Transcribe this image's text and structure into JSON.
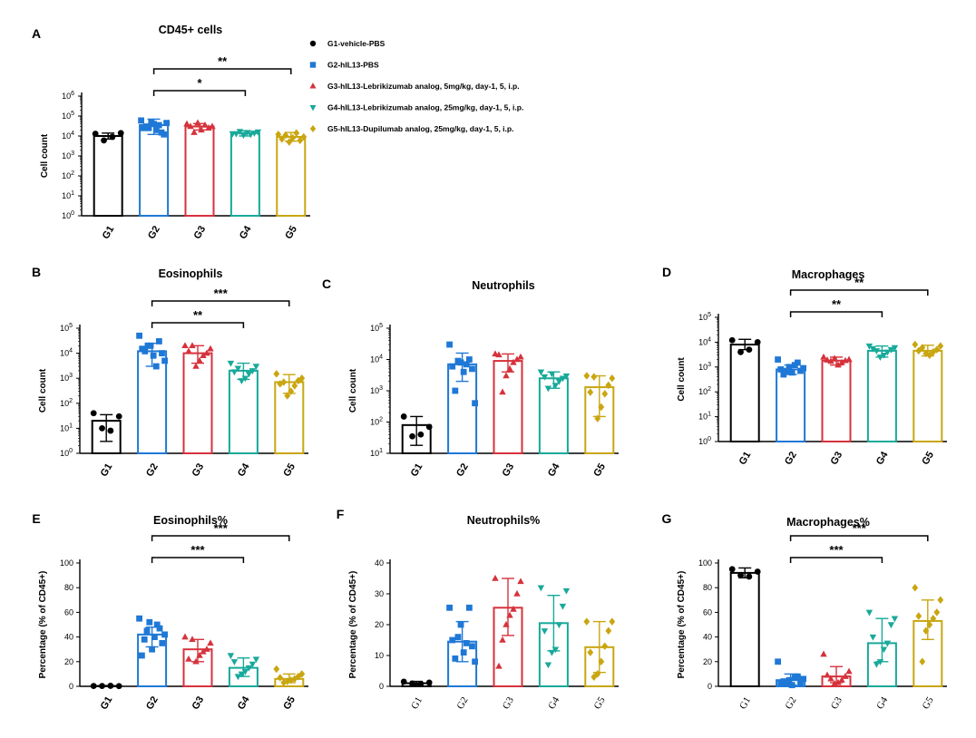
{
  "groups": [
    "G1",
    "G2",
    "G3",
    "G4",
    "G5"
  ],
  "colors": [
    "#000000",
    "#1f78d6",
    "#d6323c",
    "#18a99a",
    "#c9a611"
  ],
  "markers": [
    "circle",
    "square",
    "triangle-up",
    "triangle-down",
    "diamond"
  ],
  "legend": [
    "G1-vehicle-PBS",
    "G2-hIL13-PBS",
    "G3-hIL13-Lebrikizumab analog, 5mg/kg, day-1, 5, i.p.",
    "G4-hIL13-Lebrikizumab analog, 25mg/kg, day-1, 5, i.p.",
    "G5-hIL13-Dupilumab analog, 25mg/kg, day-1, 5, i.p."
  ],
  "chart_data": [
    {
      "panel": "A",
      "title": "CD45+ cells",
      "type": "bar",
      "scale": "log",
      "ylabel": "Cell count",
      "ylim": [
        1,
        1000000
      ],
      "ytick_labels": [
        [
          "10",
          "0"
        ],
        [
          "10",
          "1"
        ],
        [
          "10",
          "2"
        ],
        [
          "10",
          "3"
        ],
        [
          "10",
          "4"
        ],
        [
          "10",
          "5"
        ],
        [
          "10",
          "6"
        ]
      ],
      "categories": [
        "G1",
        "G2",
        "G3",
        "G4",
        "G5"
      ],
      "means": [
        10000,
        35000,
        30000,
        14000,
        9000
      ],
      "sd": [
        [
          7000,
          14000
        ],
        [
          12000,
          70000
        ],
        [
          20000,
          42000
        ],
        [
          10000,
          18000
        ],
        [
          5500,
          15000
        ]
      ],
      "points": [
        [
          13000,
          14000,
          9000,
          6000
        ],
        [
          60000,
          35000,
          25000,
          45000,
          20000,
          30000,
          12000,
          40000,
          25000,
          15000,
          50000
        ],
        [
          40000,
          30000,
          25000,
          35000,
          20000,
          45000,
          15000,
          30000
        ],
        [
          13000,
          16000,
          14000,
          12000,
          15000,
          11000,
          17000,
          13000
        ],
        [
          12000,
          9000,
          6000,
          14000,
          8000,
          5000,
          11000,
          7000
        ]
      ],
      "significance": [
        {
          "from": "G2",
          "to": "G4",
          "label": "*"
        },
        {
          "from": "G2",
          "to": "G5",
          "label": "**"
        }
      ]
    },
    {
      "panel": "B",
      "title": "Eosinophils",
      "type": "bar",
      "scale": "log",
      "ylabel": "Cell count",
      "ylim": [
        1,
        100000
      ],
      "ytick_labels": [
        [
          "10",
          "0"
        ],
        [
          "10",
          "1"
        ],
        [
          "10",
          "2"
        ],
        [
          "10",
          "3"
        ],
        [
          "10",
          "4"
        ],
        [
          "10",
          "5"
        ]
      ],
      "categories": [
        "G1",
        "G2",
        "G3",
        "G4",
        "G5"
      ],
      "means": [
        20,
        12000,
        10000,
        2000,
        700
      ],
      "sd": [
        [
          3,
          35
        ],
        [
          3000,
          25000
        ],
        [
          4000,
          20000
        ],
        [
          900,
          4000
        ],
        [
          250,
          1400
        ]
      ],
      "points": [
        [
          40,
          30,
          8,
          10
        ],
        [
          50000,
          30000,
          20000,
          15000,
          10000,
          8000,
          12000,
          5000,
          3000,
          20000
        ],
        [
          20000,
          15000,
          10000,
          8000,
          5000,
          3000,
          20000,
          12000
        ],
        [
          4000,
          3000,
          2000,
          1500,
          1000,
          800,
          2500,
          1800
        ],
        [
          1500,
          1000,
          800,
          500,
          300,
          200,
          700,
          600
        ]
      ],
      "significance": [
        {
          "from": "G2",
          "to": "G4",
          "label": "**"
        },
        {
          "from": "G2",
          "to": "G5",
          "label": "***"
        }
      ]
    },
    {
      "panel": "C",
      "title": "Neutrophils",
      "type": "bar",
      "scale": "log",
      "ylabel": "Cell count",
      "ylim": [
        10,
        100000
      ],
      "ytick_labels": [
        [
          "10",
          "1"
        ],
        [
          "10",
          "2"
        ],
        [
          "10",
          "3"
        ],
        [
          "10",
          "4"
        ],
        [
          "10",
          "5"
        ]
      ],
      "categories": [
        "G1",
        "G2",
        "G3",
        "G4",
        "G5"
      ],
      "means": [
        80,
        7000,
        9000,
        2500,
        1300
      ],
      "sd": [
        [
          18,
          150
        ],
        [
          2000,
          16000
        ],
        [
          4000,
          15000
        ],
        [
          1200,
          4000
        ],
        [
          150,
          3000
        ]
      ],
      "points": [
        [
          150,
          70,
          40,
          35
        ],
        [
          30000,
          10000,
          8000,
          6000,
          5000,
          4000,
          1000,
          400,
          7000,
          9000
        ],
        [
          15000,
          12000,
          10000,
          8000,
          5000,
          3000,
          900,
          14000
        ],
        [
          4000,
          3000,
          2500,
          2000,
          1500,
          3500,
          1200,
          2800
        ],
        [
          3000,
          2500,
          1500,
          800,
          300,
          130,
          2800,
          900
        ]
      ],
      "significance": []
    },
    {
      "panel": "D",
      "title": "Macrophages",
      "type": "bar",
      "scale": "log",
      "ylabel": "Cell count",
      "ylim": [
        1,
        100000
      ],
      "ytick_labels": [
        [
          "10",
          "0"
        ],
        [
          "10",
          "1"
        ],
        [
          "10",
          "2"
        ],
        [
          "10",
          "3"
        ],
        [
          "10",
          "4"
        ],
        [
          "10",
          "5"
        ]
      ],
      "categories": [
        "G1",
        "G2",
        "G3",
        "G4",
        "G5"
      ],
      "means": [
        8000,
        800,
        1800,
        4500,
        4500
      ],
      "sd": [
        [
          5000,
          13000
        ],
        [
          500,
          1200
        ],
        [
          1200,
          2500
        ],
        [
          2500,
          7000
        ],
        [
          2800,
          7500
        ]
      ],
      "points": [
        [
          12000,
          10000,
          5000,
          4000
        ],
        [
          2000,
          1500,
          1000,
          800,
          700,
          600,
          500,
          900,
          1200,
          700
        ],
        [
          2500,
          2000,
          1800,
          1500,
          1200,
          2200,
          1700,
          1900
        ],
        [
          7000,
          6000,
          5000,
          4000,
          3000,
          2500,
          4500,
          5500
        ],
        [
          8000,
          7000,
          5000,
          4000,
          3000,
          3500,
          6000,
          4500
        ]
      ],
      "significance": [
        {
          "from": "G2",
          "to": "G4",
          "label": "**"
        },
        {
          "from": "G2",
          "to": "G5",
          "label": "**"
        }
      ]
    },
    {
      "panel": "E",
      "title": "Eosinophils%",
      "type": "bar",
      "scale": "linear",
      "ylabel": "Percentage (% of CD45+)",
      "ylim": [
        0,
        100
      ],
      "yticks": [
        0,
        20,
        40,
        60,
        80,
        100
      ],
      "categories": [
        "G1",
        "G2",
        "G3",
        "G4",
        "G5"
      ],
      "means": [
        0.3,
        42,
        30,
        15,
        6
      ],
      "sd": [
        [
          0,
          0.6
        ],
        [
          32,
          48
        ],
        [
          20,
          38
        ],
        [
          8,
          23
        ],
        [
          3,
          10
        ]
      ],
      "points": [
        [
          0.3,
          0.2,
          0.4,
          0.3
        ],
        [
          55,
          50,
          45,
          42,
          40,
          38,
          35,
          30,
          25,
          47,
          52
        ],
        [
          40,
          35,
          30,
          28,
          25,
          20,
          38,
          22
        ],
        [
          25,
          22,
          18,
          15,
          12,
          10,
          8,
          20
        ],
        [
          14,
          10,
          8,
          6,
          5,
          4,
          3,
          7
        ]
      ],
      "significance": [
        {
          "from": "G2",
          "to": "G4",
          "label": "***"
        },
        {
          "from": "G2",
          "to": "G5",
          "label": "***"
        }
      ]
    },
    {
      "panel": "F",
      "title": "Neutrophils%",
      "type": "bar",
      "scale": "linear",
      "ylabel": "Percentage (% of CD45+)",
      "ylim": [
        0,
        40
      ],
      "yticks": [
        0,
        10,
        20,
        30,
        40
      ],
      "categories": [
        "G1",
        "G2",
        "G3",
        "G4",
        "G5"
      ],
      "means": [
        1,
        14.5,
        25.5,
        20.5,
        12.7
      ],
      "sd": [
        [
          0.5,
          1.6
        ],
        [
          8,
          21
        ],
        [
          16.5,
          35
        ],
        [
          11.5,
          29.5
        ],
        [
          4.5,
          21
        ]
      ],
      "points": [
        [
          1.5,
          1.2,
          0.8,
          0.9
        ],
        [
          25.5,
          25.5,
          20,
          15,
          13,
          11,
          9,
          8,
          14,
          16
        ],
        [
          35,
          34,
          30,
          25,
          23,
          20,
          15,
          6.5
        ],
        [
          32,
          31,
          26,
          20,
          12,
          11,
          7,
          18
        ],
        [
          21,
          21,
          18,
          13,
          8,
          4,
          3,
          11
        ]
      ],
      "significance": []
    },
    {
      "panel": "G",
      "title": "Macrophages%",
      "type": "bar",
      "scale": "linear",
      "ylabel": "Percentage (% of CD45+)",
      "ylim": [
        0,
        100
      ],
      "yticks": [
        0,
        20,
        40,
        60,
        80,
        100
      ],
      "categories": [
        "G1",
        "G2",
        "G3",
        "G4",
        "G5"
      ],
      "means": [
        92,
        5,
        8,
        35,
        53
      ],
      "sd": [
        [
          88,
          96
        ],
        [
          1,
          10
        ],
        [
          3,
          16
        ],
        [
          20,
          55
        ],
        [
          38,
          70
        ]
      ],
      "points": [
        [
          95,
          93,
          89,
          90
        ],
        [
          20,
          8,
          5,
          3,
          2,
          1,
          4,
          6,
          7,
          3
        ],
        [
          26,
          12,
          8,
          5,
          3,
          2,
          6,
          9
        ],
        [
          60,
          55,
          50,
          35,
          30,
          20,
          18,
          40
        ],
        [
          80,
          70,
          60,
          55,
          50,
          45,
          20,
          57
        ]
      ],
      "significance": [
        {
          "from": "G2",
          "to": "G4",
          "label": "***"
        },
        {
          "from": "G2",
          "to": "G5",
          "label": "***"
        }
      ]
    }
  ]
}
